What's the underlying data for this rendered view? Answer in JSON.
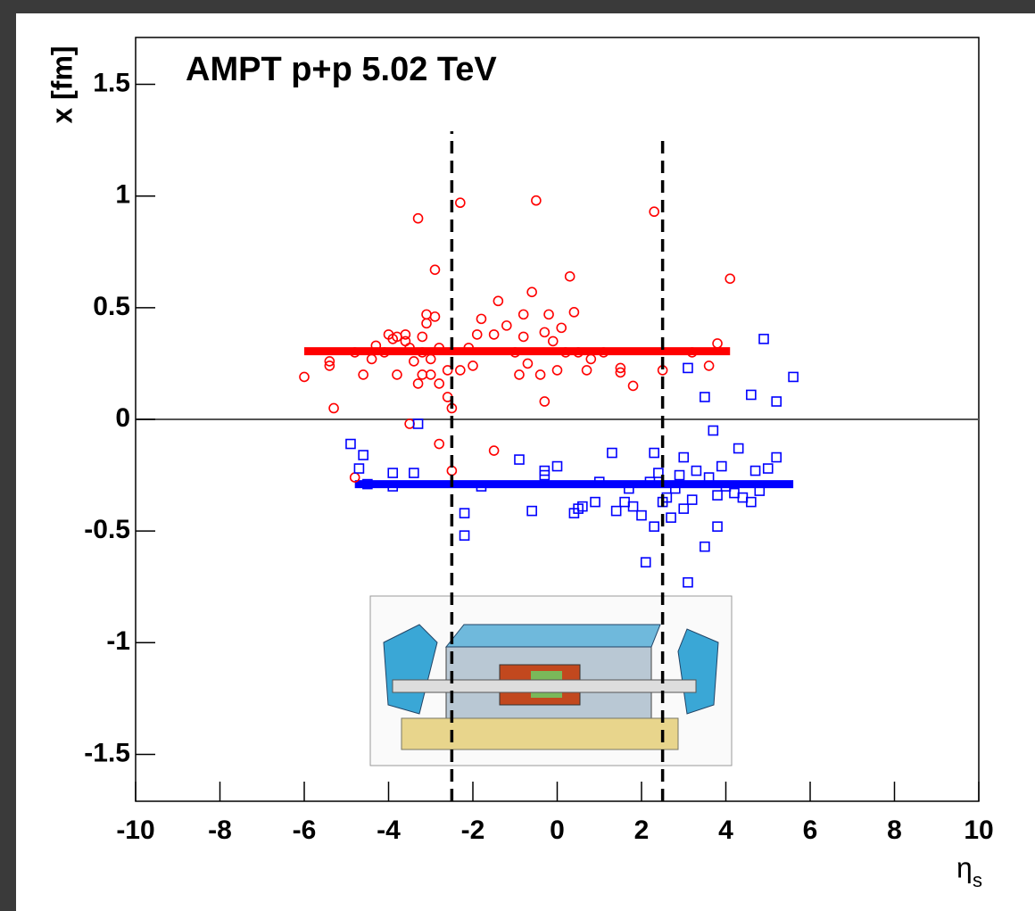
{
  "chart_data": {
    "type": "scatter",
    "title": "AMPT p+p 5.02 TeV",
    "ylabel": "x [fm]",
    "xlabel": {
      "symbol": "η",
      "subscript": "s"
    },
    "xlim": [
      -10,
      10
    ],
    "ylim": [
      -1.71,
      1.71
    ],
    "xticks": [
      -10,
      -8,
      -6,
      -4,
      -2,
      0,
      2,
      4,
      6,
      8,
      10
    ],
    "yticks": [
      -1.5,
      -1,
      -0.5,
      0,
      0.5,
      1,
      1.5
    ],
    "series": [
      {
        "color": "#ff0000",
        "marker": "circle",
        "x": [
          -6,
          -5.4,
          -5.4,
          -5.3,
          -4.8,
          -4.6,
          -4.4,
          -4.3,
          -4.1,
          -4.0,
          -3.9,
          -3.8,
          -3.8,
          -3.6,
          -3.6,
          -3.5,
          -3.4,
          -3.3,
          -3.3,
          -3.2,
          -3.2,
          -3.1,
          -3.1,
          -3.0,
          -3.0,
          -2.9,
          -2.9,
          -2.8,
          -2.8,
          -2.8,
          -2.6,
          -2.6,
          -2.5,
          -2.5,
          -2.3,
          -2.3,
          -2.1,
          -2.0,
          -1.9,
          -1.8,
          -1.5,
          -1.4,
          -1.2,
          -1.0,
          -0.9,
          -0.8,
          -0.8,
          -0.7,
          -0.6,
          -0.5,
          -0.4,
          -0.3,
          -0.3,
          -0.2,
          -0.1,
          0.0,
          0.1,
          0.2,
          0.3,
          0.4,
          0.5,
          0.7,
          0.8,
          1.1,
          1.5,
          1.5,
          1.8,
          2.3,
          2.5,
          3.2,
          3.6,
          3.8,
          4.1,
          -1.5,
          -4.8,
          -3.5,
          -3.2
        ],
        "values": [
          0.19,
          0.24,
          0.26,
          0.05,
          0.3,
          0.2,
          0.27,
          0.33,
          0.3,
          0.38,
          0.36,
          0.2,
          0.37,
          0.35,
          0.38,
          0.32,
          0.26,
          0.16,
          0.9,
          0.3,
          0.37,
          0.43,
          0.47,
          0.27,
          0.2,
          0.67,
          0.46,
          0.32,
          0.16,
          -0.11,
          0.22,
          0.1,
          0.05,
          -0.23,
          0.97,
          0.22,
          0.32,
          0.24,
          0.38,
          0.45,
          0.38,
          0.53,
          0.42,
          0.3,
          0.2,
          0.47,
          0.37,
          0.25,
          0.57,
          0.98,
          0.2,
          0.39,
          0.08,
          0.47,
          0.35,
          0.22,
          0.41,
          0.3,
          0.64,
          0.48,
          0.3,
          0.22,
          0.27,
          0.3,
          0.23,
          0.21,
          0.15,
          0.93,
          0.22,
          0.3,
          0.24,
          0.34,
          0.63,
          -0.14,
          -0.26,
          -0.02,
          0.2
        ]
      },
      {
        "color": "#0000ff",
        "marker": "square",
        "x": [
          -4.9,
          -4.7,
          -4.6,
          -4.5,
          -3.9,
          -3.9,
          -3.4,
          -3.3,
          -2.2,
          -2.2,
          -1.8,
          -0.9,
          -0.6,
          -0.3,
          -0.3,
          0.0,
          0.4,
          0.5,
          0.6,
          0.9,
          1.0,
          1.3,
          1.4,
          1.6,
          1.7,
          1.8,
          2.0,
          2.1,
          2.2,
          2.3,
          2.3,
          2.4,
          2.5,
          2.6,
          2.7,
          2.8,
          2.9,
          3.0,
          3.0,
          3.1,
          3.1,
          3.2,
          3.3,
          3.5,
          3.5,
          3.6,
          3.7,
          3.8,
          3.8,
          3.9,
          4.0,
          4.2,
          4.3,
          4.4,
          4.6,
          4.6,
          4.7,
          4.8,
          4.9,
          5.0,
          5.2,
          5.2,
          5.6
        ],
        "values": [
          -0.11,
          -0.22,
          -0.16,
          -0.29,
          -0.24,
          -0.3,
          -0.24,
          -0.02,
          -0.42,
          -0.52,
          -0.3,
          -0.18,
          -0.41,
          -0.23,
          -0.25,
          -0.21,
          -0.42,
          -0.4,
          -0.39,
          -0.37,
          -0.28,
          -0.15,
          -0.41,
          -0.37,
          -0.31,
          -0.39,
          -0.43,
          -0.64,
          -0.28,
          -0.48,
          -0.15,
          -0.24,
          -0.37,
          -0.35,
          -0.44,
          -0.31,
          -0.25,
          -0.17,
          -0.4,
          -0.73,
          0.23,
          -0.36,
          -0.23,
          -0.57,
          0.1,
          -0.26,
          -0.05,
          -0.48,
          -0.34,
          -0.21,
          -0.3,
          -0.33,
          -0.13,
          -0.35,
          0.11,
          -0.37,
          -0.23,
          -0.32,
          0.36,
          -0.22,
          -0.17,
          0.08,
          0.19
        ]
      }
    ],
    "mean_lines": [
      {
        "color": "#ff0000",
        "x": [
          -6,
          4.1
        ],
        "values": [
          0.305,
          0.305
        ]
      },
      {
        "color": "#0000ff",
        "x": [
          -4.8,
          5.6
        ],
        "values": [
          -0.29,
          -0.29
        ]
      }
    ],
    "dashed_lines": [
      {
        "x": -2.5,
        "y": [
          -1.71,
          1.29
        ]
      },
      {
        "x": 2.5,
        "y": [
          -1.71,
          1.27
        ]
      }
    ]
  }
}
